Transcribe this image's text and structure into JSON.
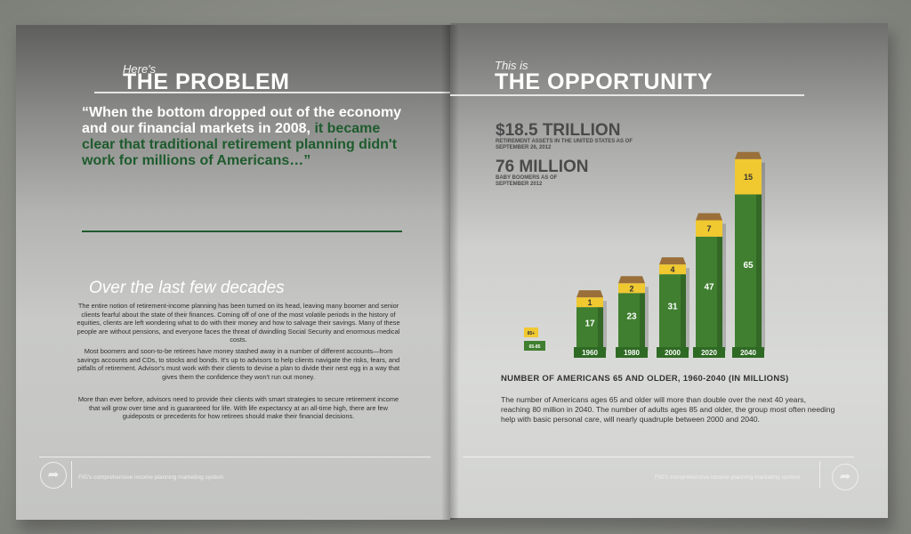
{
  "left_page": {
    "pre_title": "Here's",
    "title": "THE PROBLEM",
    "quote_white": "“When the bottom dropped out of the economy and our financial markets in 2008,",
    "quote_green": "it became clear that traditional retirement planning didn't work for millions of Americans…”",
    "subhead": "Over the last few decades",
    "paragraphs": [
      "The entire notion of retirement-income planning has been turned on its head, leaving many boomer and senior clients fearful about the state of their finances. Coming off of one of the most volatile periods in the history of equities, clients are left wondering what to do with their money and how to salvage their savings. Many of these people are without pensions, and everyone faces the threat of dwindling Social Security and enormous medical costs.",
      "Most boomers and soon-to-be retirees have money stashed away in a number of different accounts—from savings accounts and CDs, to stocks and bonds. It's up to advisors to help clients navigate the risks, fears, and pitfalls of retirement. Advisor's must work with their clients to devise a plan to divide their nest egg in a way that gives them the confidence they won't run out money.",
      "More than ever before, advisors need to provide their clients with smart strategies to secure retirement income that will grow over time and is guaranteed for life. With life expectancy at an all-time high, there are few guideposts or precedents for how retirees should make their financial decisions."
    ],
    "footer": "FIG's comprehensive income planning marketing system"
  },
  "right_page": {
    "pre_title": "This is",
    "title": "THE OPPORTUNITY",
    "stat1_value": "$18.5 TRILLION",
    "stat1_label": "RETIREMENT ASSETS IN THE UNITED STATES AS OF SEPTEMBER 26, 2012",
    "stat2_value": "76 MILLION",
    "stat2_label": "BABY BOOMERS AS OF SEPTEMBER 2012",
    "description": "The number of Americans ages 65 and older will more than double over the next 40 years, reaching 80 million in 2040. The number of adults ages 85 and older, the group most often needing help with basic personal care, will nearly quadruple between 2000 and 2040.",
    "footer": "FIG's comprehensive income planning marketing system"
  },
  "chart_data": {
    "type": "bar",
    "title": "NUMBER OF AMERICANS 65 AND OLDER, 1960-2040 (IN MILLIONS)",
    "categories": [
      "1960",
      "1980",
      "2000",
      "2020",
      "2040"
    ],
    "stacked": true,
    "series": [
      {
        "name": "65+",
        "values": [
          17,
          23,
          31,
          47,
          65
        ],
        "color": "#3f7f2f"
      },
      {
        "name": "85+",
        "values": [
          1,
          2,
          4,
          7,
          15
        ],
        "color": "#f0c830"
      }
    ],
    "legend": [
      "85+",
      "65-85"
    ],
    "legend_position": "left"
  },
  "icons": {
    "left_footer": "arrow-circle-icon",
    "right_footer": "arrow-circle-icon"
  },
  "colors": {
    "dark_green": "#1e5b2d",
    "bar_green": "#3f7f2f",
    "bar_yellow": "#f0c830"
  }
}
